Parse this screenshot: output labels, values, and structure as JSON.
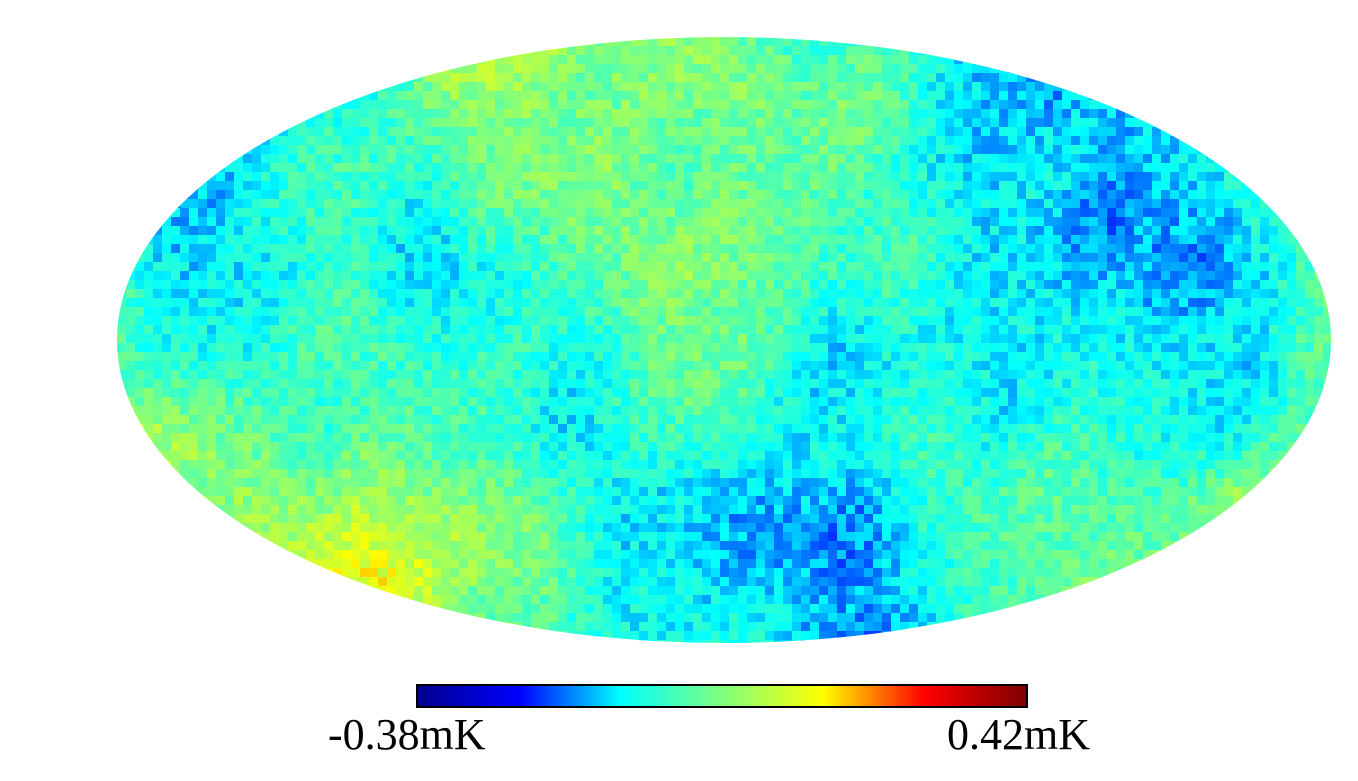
{
  "map": {
    "projection": "mollweide",
    "colormap": "jet",
    "colormap_stops": [
      "#00008f",
      "#0000ff",
      "#00ffff",
      "#7fff7f",
      "#ffff00",
      "#ff0000",
      "#7f0000"
    ],
    "background_color": "#ffffff"
  },
  "colorbar": {
    "min_label": "-0.38mK",
    "max_label": "0.42mK",
    "min_value": -0.38,
    "max_value": 0.42,
    "unit": "mK"
  }
}
